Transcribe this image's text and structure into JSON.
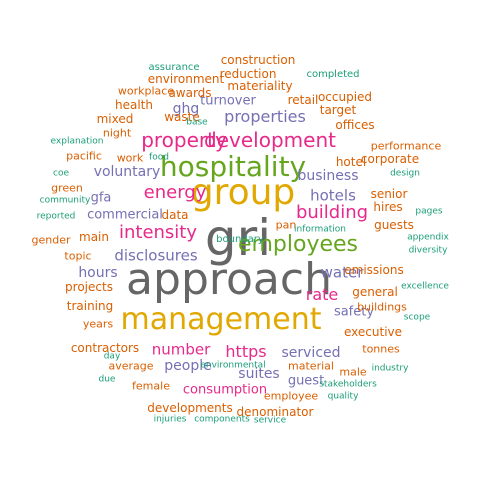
{
  "colors": {
    "gray": "#666666",
    "gold": "#e0a800",
    "green": "#66a61e",
    "magenta": "#e7298a",
    "purple": "#7570b3",
    "orange": "#d95f02",
    "teal": "#1b9e77"
  },
  "words": [
    {
      "text": "gri",
      "color": "gray"
    },
    {
      "text": "approach",
      "color": "gray"
    },
    {
      "text": "group",
      "color": "gold"
    },
    {
      "text": "management",
      "color": "gold"
    },
    {
      "text": "hospitality",
      "color": "green"
    },
    {
      "text": "employees",
      "color": "green"
    },
    {
      "text": "development",
      "color": "magenta"
    },
    {
      "text": "property",
      "color": "magenta"
    },
    {
      "text": "energy",
      "color": "magenta"
    },
    {
      "text": "intensity",
      "color": "magenta"
    },
    {
      "text": "building",
      "color": "magenta"
    },
    {
      "text": "rate",
      "color": "magenta"
    },
    {
      "text": "https",
      "color": "magenta"
    },
    {
      "text": "number",
      "color": "magenta"
    },
    {
      "text": "properties",
      "color": "purple"
    },
    {
      "text": "hotels",
      "color": "purple"
    },
    {
      "text": "water",
      "color": "purple"
    },
    {
      "text": "disclosures",
      "color": "purple"
    },
    {
      "text": "voluntary",
      "color": "purple"
    },
    {
      "text": "serviced",
      "color": "purple"
    },
    {
      "text": "people",
      "color": "purple"
    },
    {
      "text": "suites",
      "color": "purple"
    },
    {
      "text": "hours",
      "color": "purple"
    },
    {
      "text": "business",
      "color": "purple"
    },
    {
      "text": "ghg",
      "color": "purple"
    },
    {
      "text": "turnover",
      "color": "purple"
    },
    {
      "text": "commercial",
      "color": "purple"
    },
    {
      "text": "guest",
      "color": "purple"
    },
    {
      "text": "gfa",
      "color": "purple"
    },
    {
      "text": "safety",
      "color": "purple"
    },
    {
      "text": "consumption",
      "color": "magenta"
    },
    {
      "text": "hotel",
      "color": "orange"
    },
    {
      "text": "materiality",
      "color": "orange"
    },
    {
      "text": "construction",
      "color": "orange"
    },
    {
      "text": "reduction",
      "color": "orange"
    },
    {
      "text": "awards",
      "color": "orange"
    },
    {
      "text": "retail",
      "color": "orange"
    },
    {
      "text": "occupied",
      "color": "orange"
    },
    {
      "text": "target",
      "color": "orange"
    },
    {
      "text": "offices",
      "color": "orange"
    },
    {
      "text": "waste",
      "color": "orange"
    },
    {
      "text": "mixed",
      "color": "orange"
    },
    {
      "text": "health",
      "color": "orange"
    },
    {
      "text": "environment",
      "color": "orange"
    },
    {
      "text": "emissions",
      "color": "orange"
    },
    {
      "text": "general",
      "color": "orange"
    },
    {
      "text": "executive",
      "color": "orange"
    },
    {
      "text": "projects",
      "color": "orange"
    },
    {
      "text": "training",
      "color": "orange"
    },
    {
      "text": "main",
      "color": "orange"
    },
    {
      "text": "data",
      "color": "orange"
    },
    {
      "text": "guests",
      "color": "orange"
    },
    {
      "text": "hires",
      "color": "orange"
    },
    {
      "text": "senior",
      "color": "orange"
    },
    {
      "text": "corporate",
      "color": "orange"
    },
    {
      "text": "pacific",
      "color": "orange"
    },
    {
      "text": "work",
      "color": "orange"
    },
    {
      "text": "night",
      "color": "orange"
    },
    {
      "text": "contractors",
      "color": "orange"
    },
    {
      "text": "developments",
      "color": "orange"
    },
    {
      "text": "denominator",
      "color": "orange"
    },
    {
      "text": "material",
      "color": "orange"
    },
    {
      "text": "employee",
      "color": "orange"
    },
    {
      "text": "tonnes",
      "color": "orange"
    },
    {
      "text": "buildings",
      "color": "orange"
    },
    {
      "text": "years",
      "color": "orange"
    },
    {
      "text": "topic",
      "color": "orange"
    },
    {
      "text": "gender",
      "color": "orange"
    },
    {
      "text": "average",
      "color": "orange"
    },
    {
      "text": "female",
      "color": "orange"
    },
    {
      "text": "male",
      "color": "orange"
    },
    {
      "text": "green",
      "color": "orange"
    },
    {
      "text": "workplace",
      "color": "orange"
    },
    {
      "text": "performance",
      "color": "orange"
    },
    {
      "text": "pan",
      "color": "orange"
    },
    {
      "text": "assurance",
      "color": "teal"
    },
    {
      "text": "completed",
      "color": "teal"
    },
    {
      "text": "base",
      "color": "teal"
    },
    {
      "text": "explanation",
      "color": "teal"
    },
    {
      "text": "food",
      "color": "teal"
    },
    {
      "text": "coe",
      "color": "teal"
    },
    {
      "text": "community",
      "color": "teal"
    },
    {
      "text": "reported",
      "color": "teal"
    },
    {
      "text": "design",
      "color": "teal"
    },
    {
      "text": "pages",
      "color": "teal"
    },
    {
      "text": "appendix",
      "color": "teal"
    },
    {
      "text": "diversity",
      "color": "teal"
    },
    {
      "text": "excellence",
      "color": "teal"
    },
    {
      "text": "scope",
      "color": "teal"
    },
    {
      "text": "information",
      "color": "teal"
    },
    {
      "text": "environmental",
      "color": "teal"
    },
    {
      "text": "day",
      "color": "teal"
    },
    {
      "text": "due",
      "color": "teal"
    },
    {
      "text": "stakeholders",
      "color": "teal"
    },
    {
      "text": "quality",
      "color": "teal"
    },
    {
      "text": "industry",
      "color": "teal"
    },
    {
      "text": "injuries",
      "color": "teal"
    },
    {
      "text": "components",
      "color": "teal"
    },
    {
      "text": "service",
      "color": "teal"
    },
    {
      "text": "boundary",
      "color": "teal"
    }
  ]
}
